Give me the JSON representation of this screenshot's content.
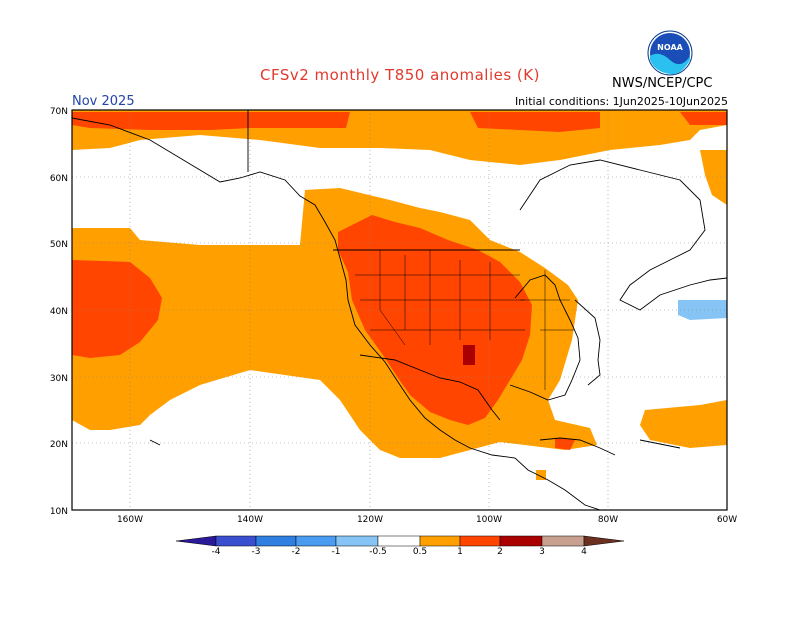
{
  "header": {
    "title": "CFSv2 monthly T850 anomalies (K)",
    "month": "Nov 2025",
    "initial_conditions": "Initial conditions: 1Jun2025-10Jun2025",
    "agency": "NWS/NCEP/CPC",
    "logo_text": "NOAA"
  },
  "axes": {
    "lat_labels": [
      "70N",
      "60N",
      "50N",
      "40N",
      "30N",
      "20N",
      "10N"
    ],
    "lon_labels": [
      "160W",
      "140W",
      "120W",
      "100W",
      "80W",
      "60W"
    ]
  },
  "colorbar": {
    "labels": [
      "-4",
      "-3",
      "-2",
      "-1",
      "-0.5",
      "0.5",
      "1",
      "2",
      "3",
      "4"
    ],
    "colors": [
      "#2a1a9a",
      "#3a4fd0",
      "#2e7fe0",
      "#4a9cf0",
      "#86c4f5",
      "#ffffff",
      "#ffa000",
      "#ff4500",
      "#aa0000",
      "#c8a090",
      "#6b3020"
    ],
    "min_color": "#2a1a9a",
    "max_color": "#6b3020"
  },
  "legend_colors": {
    "anom_05_1": "#ffa000",
    "anom_1_2": "#ff4500",
    "anom_2_3": "#aa0000",
    "anom_-1_-05": "#86c4f5"
  }
}
